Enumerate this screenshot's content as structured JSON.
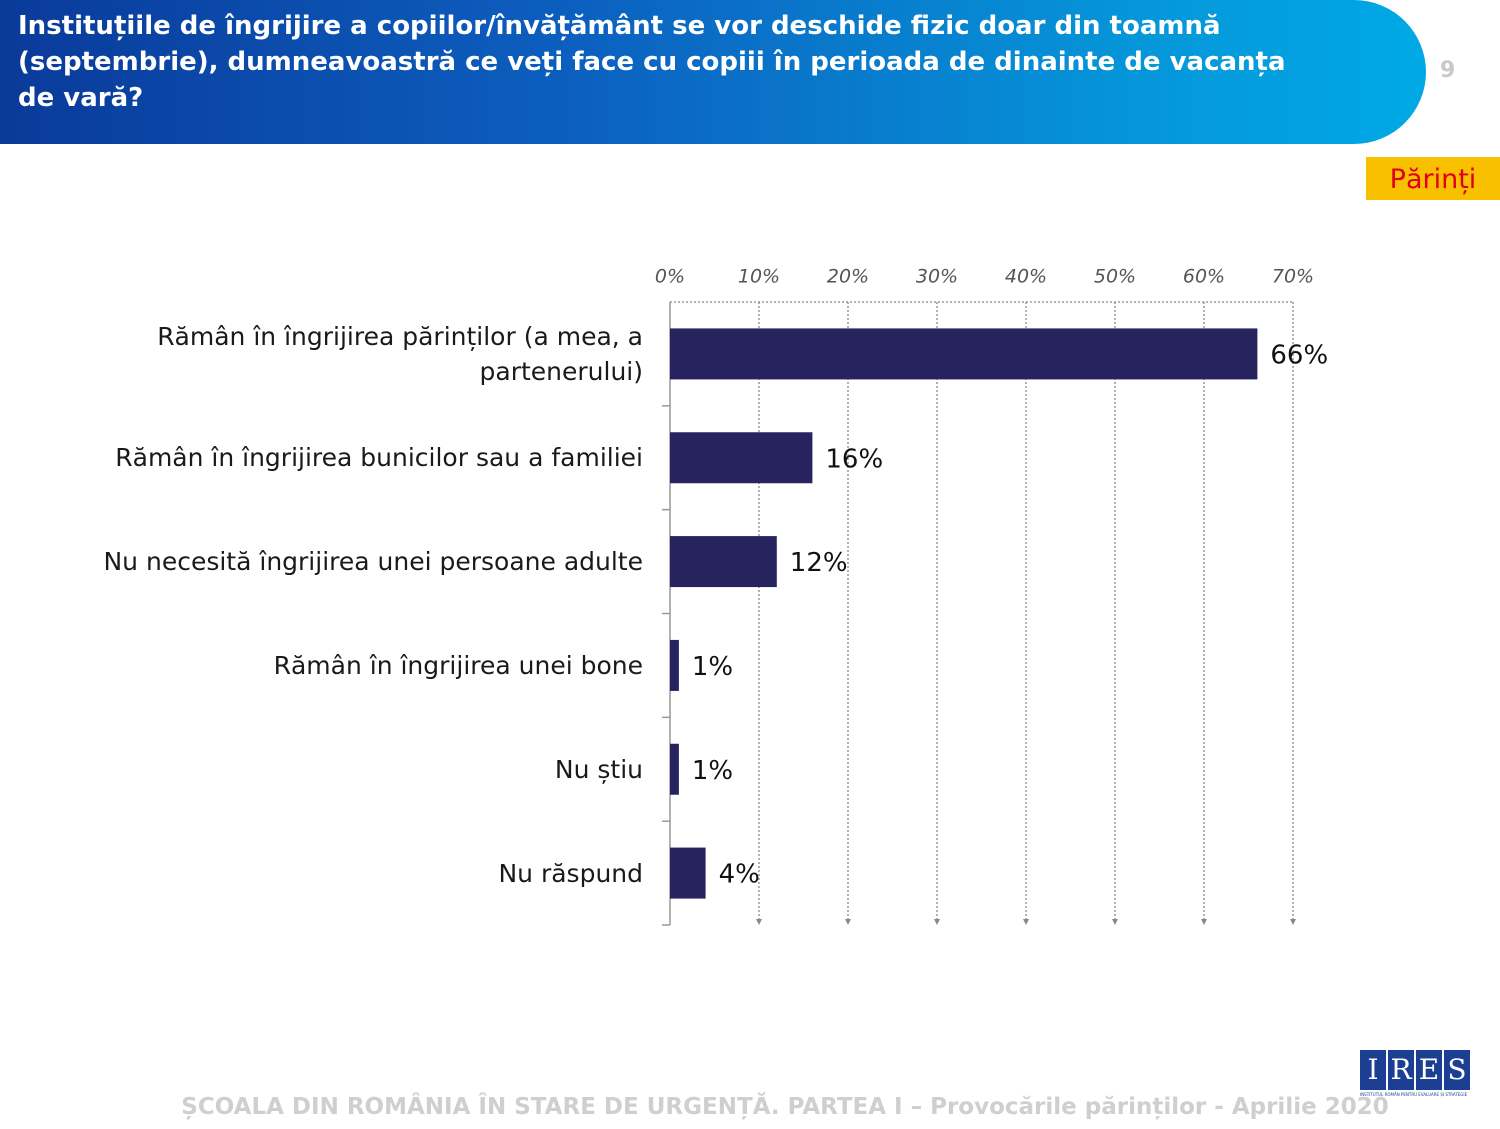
{
  "header": {
    "title": "Instituțiile de îngrijire a copiilor/învățământ se vor deschide fizic doar din toamnă (septembrie), dumneavoastră ce veți face cu copiii în perioada de dinainte de vacanța de vară?",
    "page_number": "9",
    "badge": "Părinți"
  },
  "chart_data": {
    "type": "hbar",
    "categories": [
      "Rămân în îngrijirea părinților (a mea, a partenerului)",
      "Rămân în îngrijirea bunicilor sau a familiei",
      "Nu necesită îngrijirea unei persoane adulte",
      "Rămân în îngrijirea unei bone",
      "Nu știu",
      "Nu răspund"
    ],
    "values": [
      66,
      16,
      12,
      1,
      1,
      4
    ],
    "value_labels": [
      "66%",
      "16%",
      "12%",
      "1%",
      "1%",
      "4%"
    ],
    "color": "#27235e",
    "xlim": [
      0,
      70
    ],
    "xticks": [
      {
        "value": 0,
        "label": "0%"
      },
      {
        "value": 10,
        "label": "10%"
      },
      {
        "value": 20,
        "label": "20%"
      },
      {
        "value": 30,
        "label": "30%"
      },
      {
        "value": 40,
        "label": "40%"
      },
      {
        "value": 50,
        "label": "50%"
      },
      {
        "value": 60,
        "label": "60%"
      },
      {
        "value": 70,
        "label": "70%"
      }
    ],
    "grid": true
  },
  "footer": {
    "text": "ȘCOALA DIN ROMÂNIA ÎN STARE DE URGENȚĂ. PARTEA I – Provocările părinților - Aprilie 2020",
    "logo_letters": [
      "I",
      "R",
      "E",
      "S"
    ],
    "logo_caption": "INSTITUTUL ROMÂN PENTRU EVALUARE ȘI STRATEGIE"
  }
}
